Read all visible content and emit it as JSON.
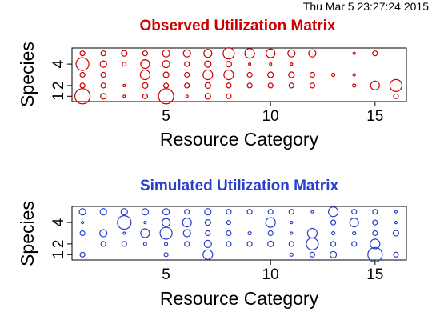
{
  "timestamp": "Thu Mar  5 23:27:24 2015",
  "colors": {
    "observed": "#cc0000",
    "simulated": "#2940c8",
    "axis": "#000000"
  },
  "chart_data": [
    {
      "type": "scatter",
      "title": "Observed Utilization Matrix",
      "xlabel": "Resource Category",
      "ylabel": "Species",
      "xlim": [
        0.5,
        16.5
      ],
      "ylim": [
        0.5,
        5.5
      ],
      "x_ticks": [
        5,
        10,
        15
      ],
      "y_ticks": [
        1,
        2,
        4
      ],
      "encoding": "circle radius proportional to utilization",
      "matrix": [
        [
          0.95,
          0.35,
          0.15,
          0.3,
          0.95,
          0.15,
          0.35,
          0.3,
          0.0,
          0.0,
          0.0,
          0.0,
          0.0,
          0.0,
          0.0,
          0.3
        ],
        [
          0.3,
          0.3,
          0.15,
          0.35,
          0.3,
          0.3,
          0.35,
          0.3,
          0.3,
          0.3,
          0.3,
          0.3,
          0.0,
          0.2,
          0.55,
          0.75
        ],
        [
          0.3,
          0.3,
          0.0,
          0.6,
          0.35,
          0.3,
          0.6,
          0.6,
          0.3,
          0.35,
          0.35,
          0.3,
          0.2,
          0.15,
          0.0,
          0.0
        ],
        [
          0.8,
          0.4,
          0.25,
          0.55,
          0.45,
          0.3,
          0.4,
          0.35,
          0.15,
          0.15,
          0.15,
          0.0,
          0.0,
          0.0,
          0.0,
          0.0
        ],
        [
          0.3,
          0.3,
          0.35,
          0.3,
          0.45,
          0.45,
          0.5,
          0.7,
          0.6,
          0.55,
          0.45,
          0.45,
          0.0,
          0.15,
          0.3,
          0.0
        ]
      ]
    },
    {
      "type": "scatter",
      "title": "Simulated Utilization Matrix",
      "xlabel": "Resource Category",
      "ylabel": "Species",
      "xlim": [
        0.5,
        16.5
      ],
      "ylim": [
        0.5,
        5.5
      ],
      "x_ticks": [
        5,
        10,
        15
      ],
      "y_ticks": [
        1,
        2,
        4
      ],
      "encoding": "circle radius proportional to utilization",
      "matrix": [
        [
          0.3,
          0.0,
          0.0,
          0.0,
          0.25,
          0.0,
          0.6,
          0.0,
          0.0,
          0.0,
          0.2,
          0.3,
          0.4,
          0.0,
          0.9,
          0.3
        ],
        [
          0.0,
          0.3,
          0.3,
          0.2,
          0.2,
          0.3,
          0.45,
          0.3,
          0.3,
          0.35,
          0.3,
          0.75,
          0.3,
          0.3,
          0.6,
          0.0
        ],
        [
          0.3,
          0.45,
          0.15,
          0.55,
          0.75,
          0.45,
          0.3,
          0.3,
          0.2,
          0.3,
          0.15,
          0.6,
          0.2,
          0.2,
          0.3,
          0.35
        ],
        [
          0.15,
          0.0,
          0.85,
          0.15,
          0.5,
          0.55,
          0.35,
          0.25,
          0.0,
          0.6,
          0.15,
          0.0,
          0.3,
          0.55,
          0.3,
          0.15
        ],
        [
          0.4,
          0.4,
          0.4,
          0.4,
          0.4,
          0.3,
          0.4,
          0.3,
          0.3,
          0.3,
          0.3,
          0.15,
          0.6,
          0.3,
          0.3,
          0.15
        ]
      ]
    }
  ]
}
